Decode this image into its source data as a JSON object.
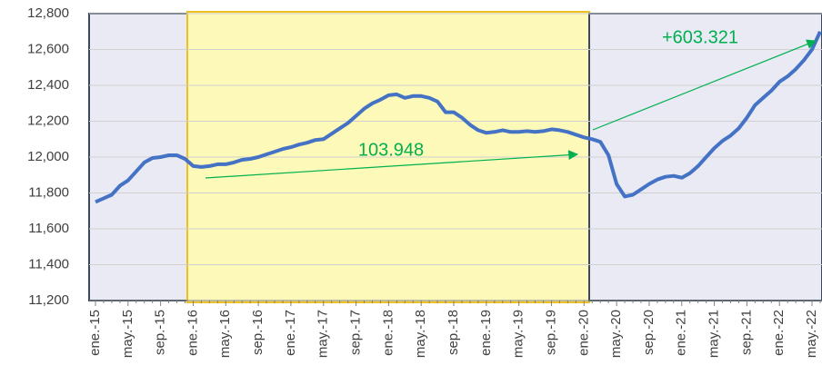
{
  "chart_data": {
    "type": "line",
    "categories": [
      "ene.-15",
      null,
      null,
      null,
      "may.-15",
      null,
      null,
      null,
      "sep.-15",
      null,
      null,
      null,
      "ene.-16",
      null,
      null,
      null,
      "may.-16",
      null,
      null,
      null,
      "sep.-16",
      null,
      null,
      null,
      "ene.-17",
      null,
      null,
      null,
      "may.-17",
      null,
      null,
      null,
      "sep.-17",
      null,
      null,
      null,
      "ene.-18",
      null,
      null,
      null,
      "may.-18",
      null,
      null,
      null,
      "sep.-18",
      null,
      null,
      null,
      "ene.-19",
      null,
      null,
      null,
      "may.-19",
      null,
      null,
      null,
      "sep.-19",
      null,
      null,
      null,
      "ene.-20",
      null,
      null,
      null,
      "may.-20",
      null,
      null,
      null,
      "sep.-20",
      null,
      null,
      null,
      "ene.-21",
      null,
      null,
      null,
      "may.-21",
      null,
      null,
      null,
      "sep.-21",
      null,
      null,
      null,
      "ene.-22",
      null,
      null,
      null,
      "may.-22",
      null
    ],
    "series": [
      {
        "name": null,
        "color": "#4472c4",
        "values": [
          11750,
          11770,
          11790,
          11840,
          11870,
          11920,
          11970,
          11995,
          12000,
          12010,
          12010,
          11990,
          11950,
          11945,
          11950,
          11960,
          11960,
          11970,
          11985,
          11990,
          12000,
          12015,
          12030,
          12045,
          12055,
          12070,
          12080,
          12095,
          12100,
          12130,
          12160,
          12190,
          12230,
          12270,
          12300,
          12320,
          12345,
          12350,
          12330,
          12340,
          12340,
          12330,
          12310,
          12250,
          12250,
          12220,
          12180,
          12150,
          12135,
          12140,
          12150,
          12140,
          12140,
          12145,
          12140,
          12145,
          12155,
          12150,
          12140,
          12125,
          12110,
          12100,
          12085,
          12010,
          11850,
          11780,
          11790,
          11820,
          11850,
          11875,
          11890,
          11895,
          11885,
          11910,
          11950,
          12000,
          12050,
          12090,
          12120,
          12160,
          12220,
          12290,
          12330,
          12370,
          12420,
          12450,
          12490,
          12540,
          12600,
          12700
        ]
      }
    ],
    "ylim": [
      11200,
      12800
    ],
    "yticks": [
      {
        "value": 11200,
        "label": "11,200"
      },
      {
        "value": 11400,
        "label": "11,400"
      },
      {
        "value": 11600,
        "label": "11,600"
      },
      {
        "value": 11800,
        "label": "11,800"
      },
      {
        "value": 12000,
        "label": "12,000"
      },
      {
        "value": 12200,
        "label": "12,200"
      },
      {
        "value": 12400,
        "label": "12,400"
      },
      {
        "value": 12600,
        "label": "12,600"
      },
      {
        "value": 12800,
        "label": "12,800"
      }
    ],
    "grid": true,
    "annotations": [
      "103.948",
      "+603.321"
    ]
  }
}
